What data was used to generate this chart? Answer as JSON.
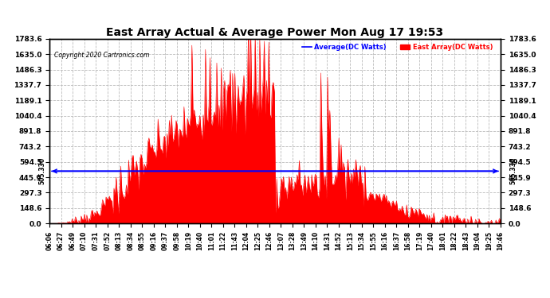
{
  "title": "East Array Actual & Average Power Mon Aug 17 19:53",
  "copyright": "Copyright 2020 Cartronics.com",
  "legend_avg": "Average(DC Watts)",
  "legend_east": "East Array(DC Watts)",
  "avg_value": 505.33,
  "avg_label": "505.330",
  "yticks": [
    0.0,
    148.6,
    297.3,
    445.9,
    594.5,
    743.2,
    891.8,
    1040.4,
    1189.1,
    1337.7,
    1486.3,
    1635.0,
    1783.6
  ],
  "ymax": 1783.6,
  "ymin": 0.0,
  "fill_color": "#FF0000",
  "avg_line_color": "#0000FF",
  "title_color": "#000000",
  "bg_color": "#FFFFFF",
  "grid_color": "#BBBBBB",
  "xtick_labels": [
    "06:06",
    "06:27",
    "06:49",
    "07:10",
    "07:31",
    "07:52",
    "08:13",
    "08:34",
    "08:55",
    "09:16",
    "09:37",
    "09:58",
    "10:19",
    "10:40",
    "11:01",
    "11:22",
    "11:43",
    "12:04",
    "12:25",
    "12:46",
    "13:07",
    "13:28",
    "13:49",
    "14:10",
    "14:31",
    "14:52",
    "15:13",
    "15:34",
    "15:55",
    "16:16",
    "16:37",
    "16:58",
    "17:19",
    "17:40",
    "18:01",
    "18:22",
    "18:43",
    "19:04",
    "19:25",
    "19:46"
  ],
  "num_points": 400,
  "seed": 7
}
